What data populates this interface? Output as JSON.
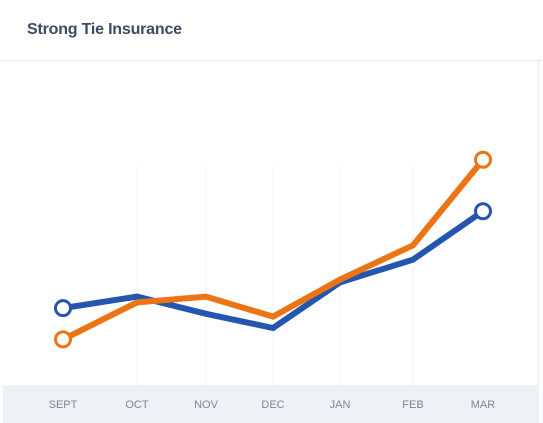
{
  "title": "Strong Tie Insurance",
  "chart_data": {
    "type": "line",
    "title": "Strong Tie Insurance",
    "categories": [
      "SEPT",
      "OCT",
      "NOV",
      "DEC",
      "JAN",
      "FEB",
      "MAR"
    ],
    "ylim": [
      0,
      100
    ],
    "grid": false,
    "legend": "none",
    "series": [
      {
        "color": "#2456b0",
        "values": [
          27,
          31,
          25,
          20,
          36,
          44,
          61
        ]
      },
      {
        "color": "#ec7415",
        "values": [
          16,
          29,
          31,
          24,
          37,
          49,
          79
        ]
      }
    ]
  }
}
